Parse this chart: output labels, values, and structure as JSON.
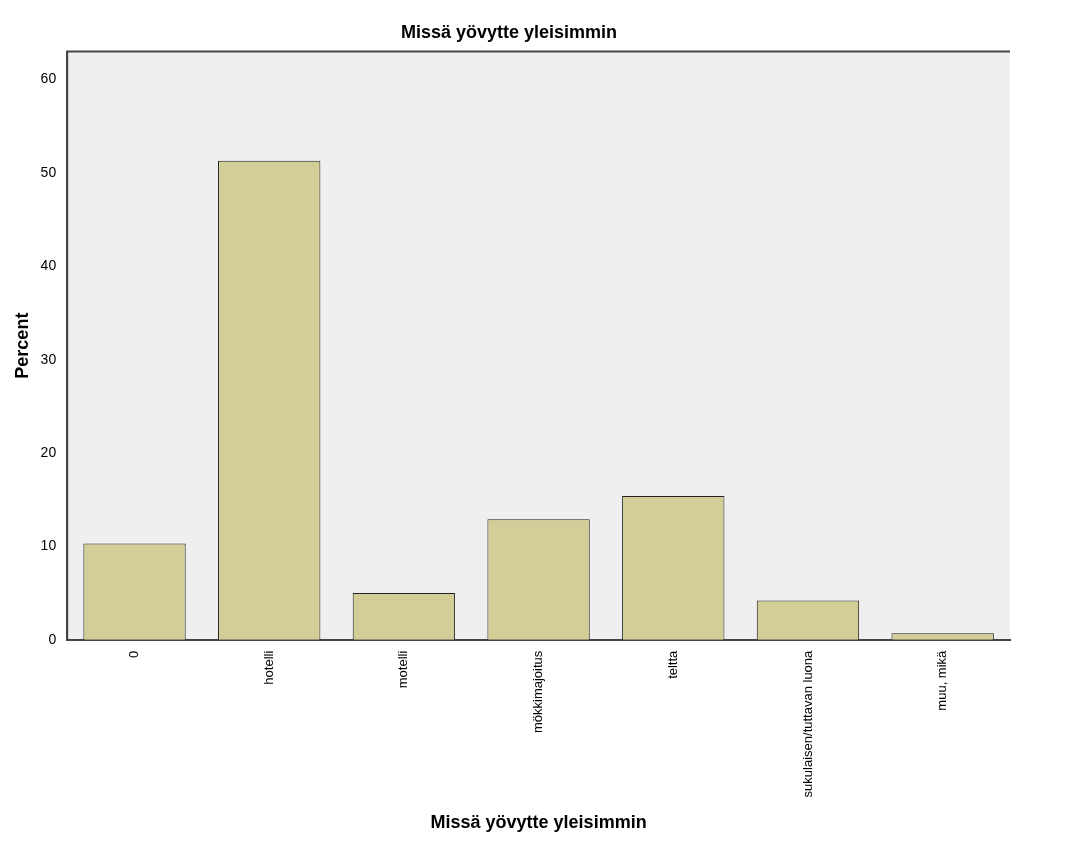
{
  "chart_data": {
    "type": "bar",
    "title": "Missä yövytte yleisimmin",
    "xlabel": "Missä yövytte yleisimmin",
    "ylabel": "Percent",
    "categories": [
      "0",
      "hotelli",
      "motelli",
      "mökkimajoitus",
      "teltta",
      "sukulaisen/tuttavan luona",
      "muu, mikä"
    ],
    "values": [
      10.3,
      51.3,
      5.0,
      12.9,
      15.4,
      4.2,
      0.7
    ],
    "color": "#d3ce97",
    "ylim": [
      0,
      63
    ],
    "yticks": [
      0,
      10,
      20,
      30,
      40,
      50,
      60
    ],
    "grid": false,
    "legend": false
  }
}
